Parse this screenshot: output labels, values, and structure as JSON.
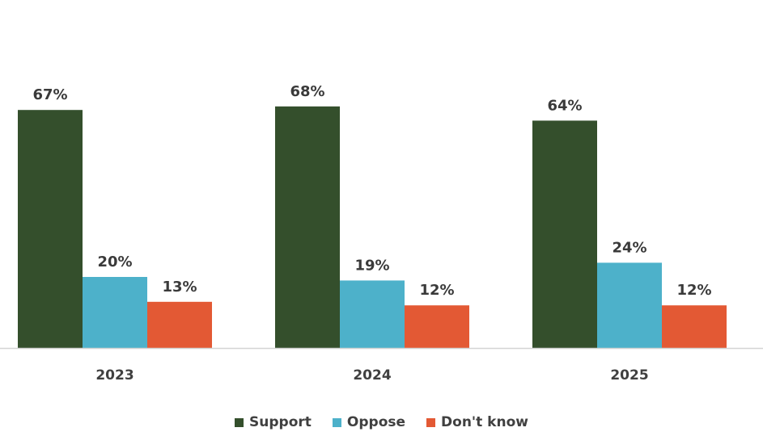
{
  "chart_data": {
    "type": "bar",
    "categories": [
      "2023",
      "2024",
      "2025"
    ],
    "series": [
      {
        "name": "Support",
        "values": [
          67,
          68,
          64
        ],
        "color": "#344f2c"
      },
      {
        "name": "Oppose",
        "values": [
          20,
          19,
          24
        ],
        "color": "#4db1ca"
      },
      {
        "name": "Don't know",
        "values": [
          13,
          12,
          12
        ],
        "color": "#e35934"
      }
    ],
    "value_suffix": "%",
    "ylim": [
      0,
      100
    ],
    "grid": false,
    "legend_position": "bottom"
  }
}
